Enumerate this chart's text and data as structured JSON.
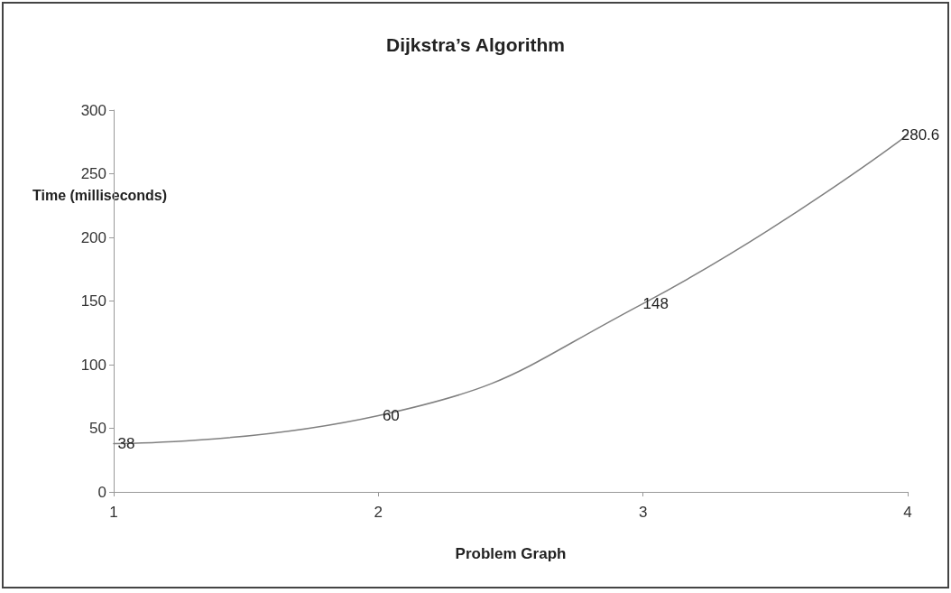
{
  "chart_data": {
    "type": "line",
    "title": "Dijkstra’s Algorithm",
    "xlabel": "Problem Graph",
    "ylabel": "Time (milliseconds)",
    "x": [
      1,
      2,
      3,
      4
    ],
    "series": [
      {
        "color": "#808080",
        "values": [
          38,
          60,
          148,
          280.6
        ]
      }
    ],
    "xlim": [
      1,
      4
    ],
    "xticks": [
      1,
      2,
      3,
      4
    ],
    "ylim": [
      0,
      300
    ],
    "yticks": [
      0,
      50,
      100,
      150,
      200,
      250,
      300
    ],
    "grid": false,
    "marker": "none",
    "line_style": "solid",
    "data_labels": true
  }
}
